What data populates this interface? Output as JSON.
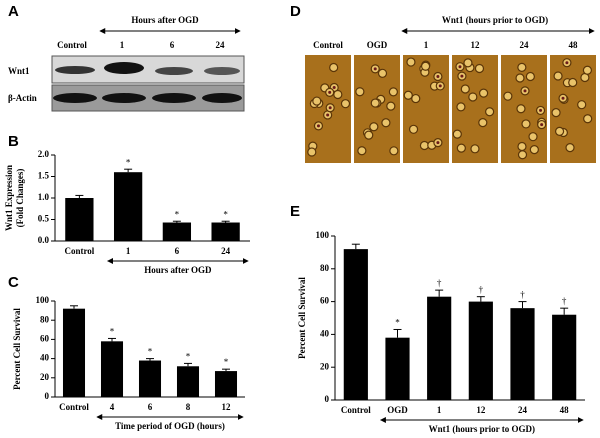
{
  "western_blot": {
    "panel": "A",
    "header": "Hours after OGD",
    "lanes": [
      "Control",
      "1",
      "6",
      "24"
    ],
    "rows": [
      "Wnt1",
      "β-Actin"
    ]
  },
  "micrographs": {
    "panel": "D",
    "header": "Wnt1 (hours prior to OGD)",
    "columns": [
      "Control",
      "OGD",
      "1",
      "12",
      "24",
      "48"
    ]
  },
  "chart_data": [
    {
      "panel": "B",
      "type": "bar",
      "ylabel": [
        "Wnt1 Expression",
        "(Fold Changes)"
      ],
      "xlabel": "Hours after OGD",
      "categories": [
        "Control",
        "1",
        "6",
        "24"
      ],
      "values": [
        1.0,
        1.6,
        0.43,
        0.43
      ],
      "errors": [
        0.06,
        0.07,
        0.03,
        0.03
      ],
      "significance": [
        null,
        "*",
        "*",
        "*"
      ],
      "color": "#000000",
      "ylim": [
        0,
        2
      ],
      "yticks": [
        {
          "value": 0,
          "label": "0.0"
        },
        0.5,
        {
          "value": 1,
          "label": "1.0"
        },
        1.5,
        {
          "value": 2,
          "label": "2.0"
        }
      ]
    },
    {
      "panel": "C",
      "type": "bar",
      "ylabel": [
        "Percent Cell Survival"
      ],
      "xlabel": "Time period of OGD (hours)",
      "categories": [
        "Control",
        "4",
        "6",
        "8",
        "12"
      ],
      "values": [
        92,
        58,
        38,
        32,
        27
      ],
      "errors": [
        3,
        3,
        2,
        3,
        2
      ],
      "significance": [
        null,
        "*",
        "*",
        "*",
        "*"
      ],
      "color": "#000000",
      "ylim": [
        0,
        100
      ],
      "yticks": [
        0,
        20,
        40,
        60,
        80,
        100
      ]
    },
    {
      "panel": "E",
      "type": "bar",
      "ylabel": [
        "Percent Cell Survival"
      ],
      "xlabel": "Wnt1 (hours prior to OGD)",
      "categories": [
        "Control",
        "OGD",
        "1",
        "12",
        "24",
        "48"
      ],
      "values": [
        92,
        38,
        63,
        60,
        56,
        52
      ],
      "errors": [
        3,
        5,
        4,
        3,
        4,
        4
      ],
      "significance": [
        null,
        "*",
        "†",
        "†",
        "†",
        "†"
      ],
      "color": "#000000",
      "ylim": [
        0,
        100
      ],
      "yticks": [
        0,
        20,
        40,
        60,
        80,
        100
      ]
    }
  ]
}
